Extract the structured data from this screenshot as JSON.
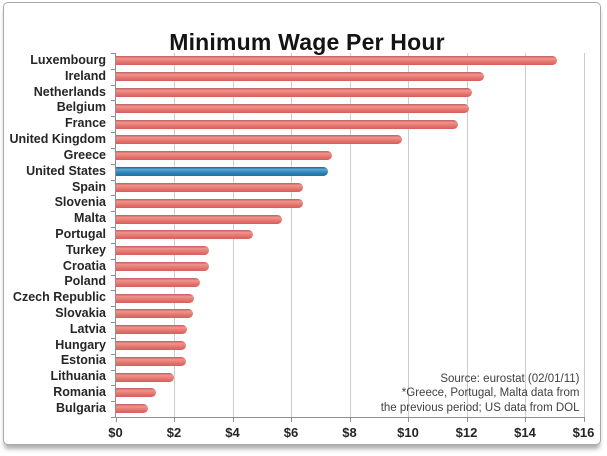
{
  "chart_data": {
    "type": "bar",
    "orientation": "horizontal",
    "title": "Minimum Wage Per Hour",
    "categories": [
      "Luxembourg",
      "Ireland",
      "Netherlands",
      "Belgium",
      "France",
      "United Kingdom",
      "Greece",
      "United States",
      "Spain",
      "Slovenia",
      "Malta",
      "Portugal",
      "Turkey",
      "Croatia",
      "Poland",
      "Czech Republic",
      "Slovakia",
      "Latvia",
      "Hungary",
      "Estonia",
      "Lithuania",
      "Romania",
      "Bulgaria"
    ],
    "values": [
      15.1,
      12.6,
      12.2,
      12.1,
      11.7,
      9.8,
      7.4,
      7.25,
      6.4,
      6.4,
      5.7,
      4.7,
      3.2,
      3.2,
      2.9,
      2.7,
      2.65,
      2.45,
      2.4,
      2.4,
      2.0,
      1.4,
      1.1
    ],
    "highlight_category": "United States",
    "xlim": [
      0,
      16
    ],
    "x_tick_step": 2,
    "x_tick_labels": [
      "$0",
      "$2",
      "$4",
      "$6",
      "$8",
      "$10",
      "$12",
      "$14",
      "$16"
    ],
    "grid": "vertical",
    "legend": "none",
    "colors": {
      "bar": "#E8736F",
      "highlight_bar": "#2E84BA",
      "gridline": "#CCCCCC",
      "axis_line": "#8F8F8F",
      "text": "#262626"
    },
    "source_lines": [
      "Source: eurostat (02/01/11)",
      "*Greece, Portugal, Malta data from",
      "the previous period; US data from DOL"
    ]
  }
}
